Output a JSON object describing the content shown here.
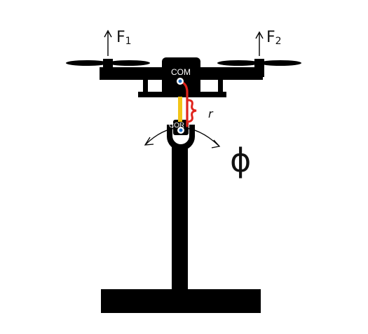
{
  "labels": {
    "force_left": {
      "symbol": "F",
      "subscript": "1"
    },
    "force_right": {
      "symbol": "F",
      "subscript": "2"
    },
    "center_of_mass": "COM",
    "center_of_rotation": "COR",
    "distance": "r",
    "angle": "ϕ"
  },
  "colors": {
    "body": "#000000",
    "distance_marker": "#e0231c",
    "arm_segment": "#f2c417",
    "point_marker": "#1f6fc5",
    "background": "#ffffff"
  }
}
